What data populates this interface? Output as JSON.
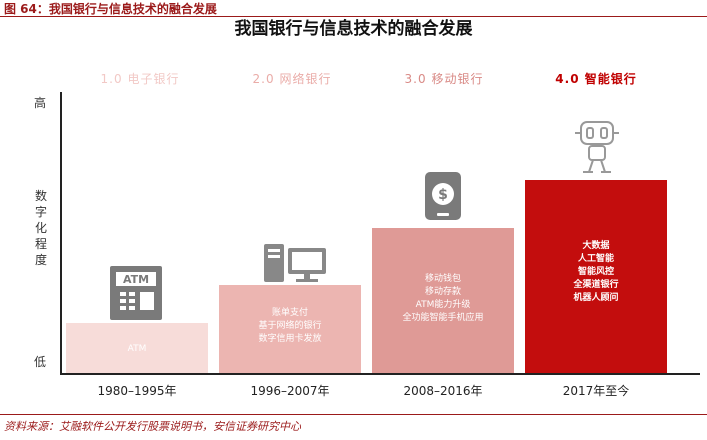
{
  "figure_label": "图 64：我国银行与信息技术的融合发展",
  "title": "我国银行与信息技术的融合发展",
  "stages": [
    {
      "label": "1.0 电子银行",
      "color": "#f2c9c6"
    },
    {
      "label": "2.0 网络银行",
      "color": "#eaaca8"
    },
    {
      "label": "3.0 移动银行",
      "color": "#d98a86"
    },
    {
      "label": "4.0 智能银行",
      "color": "#c00000"
    }
  ],
  "y_axis": {
    "high": "高",
    "low": "低",
    "label": "数字化程度"
  },
  "bars": [
    {
      "period": "1980–1995年",
      "color": "#f7dcd9",
      "lines": [
        "ATM"
      ]
    },
    {
      "period": "1996–2007年",
      "color": "#ecb5b1",
      "lines": [
        "账单支付",
        "基于网络的银行",
        "数字信用卡发放"
      ]
    },
    {
      "period": "2008–2016年",
      "color": "#df9a96",
      "lines": [
        "移动钱包",
        "移动存款",
        "ATM能力升级",
        "全功能智能手机应用"
      ]
    },
    {
      "period": "2017年至今",
      "color": "#c30d0d",
      "lines": [
        "大数据",
        "人工智能",
        "智能风控",
        "全渠道银行",
        "机器人顾问"
      ]
    }
  ],
  "icons": [
    "atm-machine-icon",
    "computer-icon",
    "smartphone-dollar-icon",
    "robot-icon"
  ],
  "atm_icon_text": "ATM",
  "phone_icon_text": "$",
  "source": "资料来源：艾融软件公开发行股票说明书，安信证券研究中心"
}
